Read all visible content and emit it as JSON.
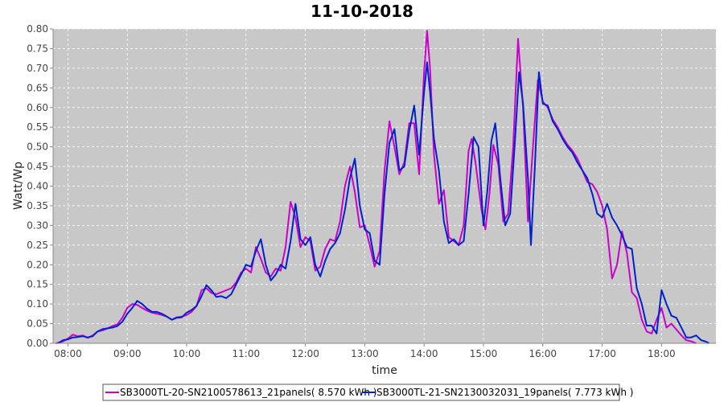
{
  "chart_data": {
    "type": "line",
    "title": "11-10-2018",
    "xlabel": "time",
    "ylabel": "Watt/Wp",
    "xlim": [
      "07:45",
      "18:55"
    ],
    "ylim": [
      0,
      0.8
    ],
    "y_ticks": [
      "0.00",
      "0.05",
      "0.10",
      "0.15",
      "0.20",
      "0.25",
      "0.30",
      "0.35",
      "0.40",
      "0.45",
      "0.50",
      "0.55",
      "0.60",
      "0.65",
      "0.70",
      "0.75",
      "0.80"
    ],
    "x_ticks": [
      "08:00",
      "09:00",
      "10:00",
      "11:00",
      "12:00",
      "13:00",
      "14:00",
      "15:00",
      "16:00",
      "17:00",
      "18:00"
    ],
    "grid": true,
    "legend_position": "bottom",
    "colors": {
      "plot_background": "#c8c8c8",
      "grid": "#ffffff"
    },
    "series": [
      {
        "name": "SB3000TL-20-SN2100578613_21panels( 8.570 kWh )",
        "color": "#cc00cc",
        "points": [
          [
            "07:48",
            0.0
          ],
          [
            "07:55",
            0.005
          ],
          [
            "08:00",
            0.012
          ],
          [
            "08:05",
            0.022
          ],
          [
            "08:10",
            0.018
          ],
          [
            "08:15",
            0.02
          ],
          [
            "08:20",
            0.014
          ],
          [
            "08:25",
            0.02
          ],
          [
            "08:30",
            0.03
          ],
          [
            "08:35",
            0.033
          ],
          [
            "08:40",
            0.038
          ],
          [
            "08:45",
            0.044
          ],
          [
            "08:50",
            0.048
          ],
          [
            "08:55",
            0.065
          ],
          [
            "09:00",
            0.09
          ],
          [
            "09:05",
            0.1
          ],
          [
            "09:10",
            0.098
          ],
          [
            "09:15",
            0.09
          ],
          [
            "09:20",
            0.083
          ],
          [
            "09:25",
            0.078
          ],
          [
            "09:30",
            0.075
          ],
          [
            "09:35",
            0.072
          ],
          [
            "09:40",
            0.068
          ],
          [
            "09:45",
            0.06
          ],
          [
            "09:50",
            0.066
          ],
          [
            "09:55",
            0.068
          ],
          [
            "10:00",
            0.072
          ],
          [
            "10:05",
            0.08
          ],
          [
            "10:10",
            0.095
          ],
          [
            "10:15",
            0.135
          ],
          [
            "10:20",
            0.14
          ],
          [
            "10:25",
            0.128
          ],
          [
            "10:30",
            0.125
          ],
          [
            "10:35",
            0.13
          ],
          [
            "10:40",
            0.135
          ],
          [
            "10:45",
            0.14
          ],
          [
            "10:50",
            0.155
          ],
          [
            "10:55",
            0.18
          ],
          [
            "11:00",
            0.19
          ],
          [
            "11:05",
            0.18
          ],
          [
            "11:10",
            0.245
          ],
          [
            "11:15",
            0.215
          ],
          [
            "11:20",
            0.18
          ],
          [
            "11:25",
            0.17
          ],
          [
            "11:30",
            0.19
          ],
          [
            "11:35",
            0.185
          ],
          [
            "11:40",
            0.245
          ],
          [
            "11:45",
            0.36
          ],
          [
            "11:50",
            0.32
          ],
          [
            "11:55",
            0.245
          ],
          [
            "12:00",
            0.27
          ],
          [
            "12:05",
            0.26
          ],
          [
            "12:10",
            0.185
          ],
          [
            "12:15",
            0.195
          ],
          [
            "12:20",
            0.24
          ],
          [
            "12:25",
            0.265
          ],
          [
            "12:30",
            0.26
          ],
          [
            "12:35",
            0.31
          ],
          [
            "12:40",
            0.4
          ],
          [
            "12:45",
            0.45
          ],
          [
            "12:50",
            0.385
          ],
          [
            "12:55",
            0.295
          ],
          [
            "13:00",
            0.3
          ],
          [
            "13:05",
            0.25
          ],
          [
            "13:10",
            0.195
          ],
          [
            "13:15",
            0.235
          ],
          [
            "13:20",
            0.44
          ],
          [
            "13:25",
            0.565
          ],
          [
            "13:30",
            0.5
          ],
          [
            "13:35",
            0.43
          ],
          [
            "13:40",
            0.46
          ],
          [
            "13:45",
            0.56
          ],
          [
            "13:50",
            0.56
          ],
          [
            "13:55",
            0.43
          ],
          [
            "14:00",
            0.69
          ],
          [
            "14:03",
            0.795
          ],
          [
            "14:06",
            0.7
          ],
          [
            "14:10",
            0.48
          ],
          [
            "14:15",
            0.355
          ],
          [
            "14:20",
            0.39
          ],
          [
            "14:25",
            0.27
          ],
          [
            "14:30",
            0.26
          ],
          [
            "14:35",
            0.25
          ],
          [
            "14:40",
            0.3
          ],
          [
            "14:45",
            0.49
          ],
          [
            "14:48",
            0.52
          ],
          [
            "14:52",
            0.46
          ],
          [
            "14:58",
            0.34
          ],
          [
            "15:02",
            0.29
          ],
          [
            "15:06",
            0.38
          ],
          [
            "15:10",
            0.505
          ],
          [
            "15:15",
            0.455
          ],
          [
            "15:20",
            0.31
          ],
          [
            "15:25",
            0.33
          ],
          [
            "15:30",
            0.5
          ],
          [
            "15:35",
            0.775
          ],
          [
            "15:40",
            0.6
          ],
          [
            "15:45",
            0.31
          ],
          [
            "15:50",
            0.5
          ],
          [
            "15:55",
            0.67
          ],
          [
            "16:00",
            0.615
          ],
          [
            "16:05",
            0.6
          ],
          [
            "16:10",
            0.57
          ],
          [
            "16:15",
            0.55
          ],
          [
            "16:20",
            0.525
          ],
          [
            "16:25",
            0.505
          ],
          [
            "16:30",
            0.49
          ],
          [
            "16:35",
            0.47
          ],
          [
            "16:40",
            0.44
          ],
          [
            "16:45",
            0.41
          ],
          [
            "16:50",
            0.405
          ],
          [
            "16:55",
            0.385
          ],
          [
            "17:00",
            0.35
          ],
          [
            "17:05",
            0.29
          ],
          [
            "17:10",
            0.165
          ],
          [
            "17:15",
            0.2
          ],
          [
            "17:20",
            0.285
          ],
          [
            "17:25",
            0.23
          ],
          [
            "17:30",
            0.13
          ],
          [
            "17:35",
            0.115
          ],
          [
            "17:40",
            0.06
          ],
          [
            "17:45",
            0.03
          ],
          [
            "17:50",
            0.025
          ],
          [
            "17:55",
            0.06
          ],
          [
            "18:00",
            0.09
          ],
          [
            "18:05",
            0.04
          ],
          [
            "18:10",
            0.05
          ],
          [
            "18:15",
            0.035
          ],
          [
            "18:20",
            0.02
          ],
          [
            "18:25",
            0.008
          ],
          [
            "18:30",
            0.005
          ],
          [
            "18:35",
            0.0
          ]
        ]
      },
      {
        "name": "SB3000TL-21-SN2130032031_19panels( 7.773 kWh )",
        "color": "#0022cc",
        "points": [
          [
            "07:50",
            0.0
          ],
          [
            "07:55",
            0.008
          ],
          [
            "08:00",
            0.01
          ],
          [
            "08:05",
            0.015
          ],
          [
            "08:10",
            0.016
          ],
          [
            "08:15",
            0.018
          ],
          [
            "08:20",
            0.015
          ],
          [
            "08:25",
            0.018
          ],
          [
            "08:30",
            0.03
          ],
          [
            "08:35",
            0.036
          ],
          [
            "08:40",
            0.038
          ],
          [
            "08:45",
            0.04
          ],
          [
            "08:50",
            0.044
          ],
          [
            "08:55",
            0.055
          ],
          [
            "09:00",
            0.075
          ],
          [
            "09:05",
            0.09
          ],
          [
            "09:10",
            0.108
          ],
          [
            "09:15",
            0.1
          ],
          [
            "09:20",
            0.088
          ],
          [
            "09:25",
            0.08
          ],
          [
            "09:30",
            0.08
          ],
          [
            "09:35",
            0.075
          ],
          [
            "09:40",
            0.068
          ],
          [
            "09:45",
            0.06
          ],
          [
            "09:50",
            0.065
          ],
          [
            "09:55",
            0.066
          ],
          [
            "10:00",
            0.078
          ],
          [
            "10:05",
            0.085
          ],
          [
            "10:10",
            0.095
          ],
          [
            "10:15",
            0.12
          ],
          [
            "10:20",
            0.148
          ],
          [
            "10:25",
            0.135
          ],
          [
            "10:30",
            0.118
          ],
          [
            "10:35",
            0.12
          ],
          [
            "10:40",
            0.115
          ],
          [
            "10:45",
            0.125
          ],
          [
            "10:50",
            0.15
          ],
          [
            "10:55",
            0.175
          ],
          [
            "11:00",
            0.2
          ],
          [
            "11:05",
            0.195
          ],
          [
            "11:10",
            0.235
          ],
          [
            "11:15",
            0.265
          ],
          [
            "11:20",
            0.2
          ],
          [
            "11:25",
            0.16
          ],
          [
            "11:30",
            0.175
          ],
          [
            "11:35",
            0.2
          ],
          [
            "11:40",
            0.19
          ],
          [
            "11:45",
            0.26
          ],
          [
            "11:50",
            0.355
          ],
          [
            "11:55",
            0.265
          ],
          [
            "12:00",
            0.25
          ],
          [
            "12:05",
            0.27
          ],
          [
            "12:10",
            0.2
          ],
          [
            "12:15",
            0.17
          ],
          [
            "12:20",
            0.21
          ],
          [
            "12:25",
            0.24
          ],
          [
            "12:30",
            0.255
          ],
          [
            "12:35",
            0.28
          ],
          [
            "12:40",
            0.34
          ],
          [
            "12:45",
            0.42
          ],
          [
            "12:50",
            0.47
          ],
          [
            "12:55",
            0.35
          ],
          [
            "13:00",
            0.29
          ],
          [
            "13:05",
            0.28
          ],
          [
            "13:10",
            0.21
          ],
          [
            "13:15",
            0.2
          ],
          [
            "13:20",
            0.38
          ],
          [
            "13:25",
            0.51
          ],
          [
            "13:30",
            0.545
          ],
          [
            "13:35",
            0.44
          ],
          [
            "13:40",
            0.45
          ],
          [
            "13:45",
            0.54
          ],
          [
            "13:50",
            0.605
          ],
          [
            "13:55",
            0.48
          ],
          [
            "14:00",
            0.64
          ],
          [
            "14:03",
            0.715
          ],
          [
            "14:06",
            0.64
          ],
          [
            "14:10",
            0.52
          ],
          [
            "14:15",
            0.44
          ],
          [
            "14:20",
            0.31
          ],
          [
            "14:25",
            0.255
          ],
          [
            "14:30",
            0.265
          ],
          [
            "14:35",
            0.25
          ],
          [
            "14:40",
            0.26
          ],
          [
            "14:45",
            0.38
          ],
          [
            "14:50",
            0.525
          ],
          [
            "14:55",
            0.5
          ],
          [
            "15:00",
            0.3
          ],
          [
            "15:04",
            0.39
          ],
          [
            "15:08",
            0.515
          ],
          [
            "15:12",
            0.56
          ],
          [
            "15:17",
            0.42
          ],
          [
            "15:22",
            0.3
          ],
          [
            "15:27",
            0.33
          ],
          [
            "15:32",
            0.52
          ],
          [
            "15:36",
            0.69
          ],
          [
            "15:40",
            0.61
          ],
          [
            "15:45",
            0.42
          ],
          [
            "15:48",
            0.25
          ],
          [
            "15:52",
            0.45
          ],
          [
            "15:56",
            0.69
          ],
          [
            "16:00",
            0.61
          ],
          [
            "16:05",
            0.605
          ],
          [
            "16:10",
            0.565
          ],
          [
            "16:15",
            0.545
          ],
          [
            "16:20",
            0.52
          ],
          [
            "16:25",
            0.5
          ],
          [
            "16:30",
            0.485
          ],
          [
            "16:35",
            0.46
          ],
          [
            "16:40",
            0.44
          ],
          [
            "16:45",
            0.42
          ],
          [
            "16:50",
            0.38
          ],
          [
            "16:55",
            0.33
          ],
          [
            "17:00",
            0.32
          ],
          [
            "17:05",
            0.355
          ],
          [
            "17:10",
            0.32
          ],
          [
            "17:15",
            0.3
          ],
          [
            "17:20",
            0.275
          ],
          [
            "17:25",
            0.245
          ],
          [
            "17:30",
            0.24
          ],
          [
            "17:35",
            0.14
          ],
          [
            "17:40",
            0.1
          ],
          [
            "17:45",
            0.045
          ],
          [
            "17:50",
            0.045
          ],
          [
            "17:55",
            0.025
          ],
          [
            "18:00",
            0.135
          ],
          [
            "18:05",
            0.1
          ],
          [
            "18:10",
            0.07
          ],
          [
            "18:15",
            0.065
          ],
          [
            "18:20",
            0.04
          ],
          [
            "18:25",
            0.015
          ],
          [
            "18:30",
            0.015
          ],
          [
            "18:35",
            0.02
          ],
          [
            "18:40",
            0.008
          ],
          [
            "18:45",
            0.004
          ],
          [
            "18:48",
            0.0
          ]
        ]
      }
    ]
  }
}
